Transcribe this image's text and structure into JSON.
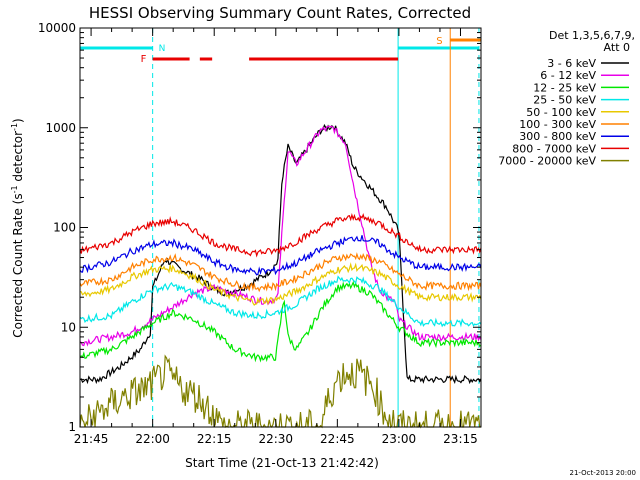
{
  "chart_data": {
    "type": "line",
    "title": "HESSI Observing Summary Count Rates, Corrected",
    "xlabel": "Start Time (21-Oct-13 21:42:42)",
    "ylabel": "Corrected Count Rate (s",
    "ylabel_sup": "-1",
    "ylabel_tail": " detector",
    "ylabel_tail_sup": "-1",
    "ylabel_close": ")",
    "yscale": "log",
    "ylim": [
      1,
      10000
    ],
    "xlim_minutes": [
      -2.7,
      95
    ],
    "xticks": [
      {
        "m": 0,
        "label": "21:45"
      },
      {
        "m": 15,
        "label": "22:00"
      },
      {
        "m": 30,
        "label": "22:15"
      },
      {
        "m": 45,
        "label": "22:30"
      },
      {
        "m": 60,
        "label": "22:45"
      },
      {
        "m": 75,
        "label": "23:00"
      },
      {
        "m": 90,
        "label": "23:15"
      }
    ],
    "yticks": [
      {
        "v": 1,
        "label": "1"
      },
      {
        "v": 10,
        "label": "10"
      },
      {
        "v": 100,
        "label": "100"
      },
      {
        "v": 1000,
        "label": "1000"
      },
      {
        "v": 10000,
        "label": "10000"
      }
    ],
    "legend_title_1": "Det 1,3,5,6,7,9,",
    "legend_title_2": "Att 0",
    "legend_position": "right",
    "series": [
      {
        "name": "3 - 6 keV",
        "color": "#000000",
        "x": [
          -2.7,
          2,
          7,
          12,
          14.5,
          15,
          18,
          22,
          27,
          30,
          33,
          38,
          43,
          45.5,
          46.5,
          48,
          50,
          53,
          56,
          59,
          62,
          64,
          67,
          70,
          72,
          75,
          77,
          80,
          85,
          90,
          95
        ],
        "values": [
          3,
          3,
          4,
          6,
          9,
          25,
          48,
          38,
          30,
          24,
          22,
          26,
          35,
          45,
          300,
          650,
          430,
          650,
          950,
          1050,
          700,
          400,
          280,
          200,
          160,
          90,
          3,
          3,
          3,
          3,
          3
        ]
      },
      {
        "name": "6 - 12 keV",
        "color": "#e800e8",
        "x": [
          -2.7,
          5,
          10,
          15,
          20,
          25,
          30,
          35,
          40,
          43,
          45.5,
          46.5,
          48,
          50,
          53,
          56,
          59,
          62,
          64,
          66,
          68,
          70,
          72,
          74,
          75,
          80,
          85,
          90,
          95
        ],
        "values": [
          7,
          8,
          9,
          12,
          16,
          22,
          25,
          22,
          19,
          18,
          20,
          90,
          600,
          430,
          650,
          950,
          1000,
          700,
          260,
          110,
          45,
          25,
          20,
          18,
          12,
          8,
          8,
          8,
          8
        ]
      },
      {
        "name": "12 - 25 keV",
        "color": "#00e800",
        "x": [
          -2.7,
          5,
          10,
          15,
          20,
          25,
          30,
          35,
          40,
          45,
          47,
          48,
          50,
          53,
          56,
          60,
          64,
          68,
          72,
          75,
          80,
          85,
          90,
          95
        ],
        "values": [
          5,
          6,
          8,
          11,
          14,
          12,
          9,
          6,
          5,
          5,
          20,
          8,
          6,
          9,
          15,
          25,
          26,
          22,
          14,
          10,
          7,
          7,
          7,
          7
        ]
      },
      {
        "name": "25 - 50 keV",
        "color": "#00e8e8",
        "x": [
          -2.7,
          5,
          10,
          15,
          20,
          25,
          30,
          35,
          40,
          45,
          50,
          55,
          60,
          65,
          70,
          75,
          80,
          85,
          90,
          95
        ],
        "values": [
          12,
          13,
          18,
          24,
          26,
          22,
          17,
          14,
          13,
          14,
          17,
          24,
          30,
          30,
          25,
          16,
          11,
          11,
          11,
          11
        ]
      },
      {
        "name": "50 - 100 keV",
        "color": "#e8c800",
        "x": [
          -2.7,
          5,
          10,
          15,
          20,
          25,
          30,
          35,
          40,
          45,
          50,
          55,
          60,
          65,
          70,
          75,
          80,
          85,
          90,
          95
        ],
        "values": [
          21,
          24,
          32,
          38,
          39,
          32,
          24,
          20,
          18,
          19,
          23,
          30,
          38,
          40,
          35,
          26,
          20,
          20,
          20,
          20
        ]
      },
      {
        "name": "100 - 300 keV",
        "color": "#ff8000",
        "x": [
          -2.7,
          5,
          10,
          15,
          20,
          25,
          30,
          35,
          40,
          45,
          50,
          55,
          60,
          65,
          70,
          75,
          80,
          85,
          90,
          95
        ],
        "values": [
          27,
          30,
          40,
          48,
          50,
          42,
          32,
          27,
          25,
          26,
          31,
          40,
          50,
          52,
          46,
          34,
          26,
          26,
          26,
          26
        ]
      },
      {
        "name": "300 - 800 keV",
        "color": "#0000e8",
        "x": [
          -2.7,
          5,
          10,
          15,
          20,
          25,
          30,
          35,
          40,
          45,
          50,
          55,
          60,
          65,
          70,
          75,
          80,
          85,
          90,
          95
        ],
        "values": [
          38,
          45,
          58,
          68,
          70,
          60,
          45,
          38,
          36,
          37,
          44,
          57,
          70,
          80,
          70,
          50,
          40,
          40,
          40,
          40
        ]
      },
      {
        "name": "800 - 7000 keV",
        "color": "#e80000",
        "x": [
          -2.7,
          5,
          10,
          15,
          20,
          25,
          30,
          35,
          40,
          45,
          50,
          55,
          60,
          65,
          70,
          75,
          80,
          85,
          90,
          95
        ],
        "values": [
          58,
          70,
          90,
          110,
          115,
          95,
          70,
          60,
          56,
          58,
          72,
          95,
          118,
          128,
          112,
          82,
          60,
          60,
          60,
          60
        ]
      },
      {
        "name": "7000 - 20000 keV",
        "color": "#808000",
        "x": [
          -2.7,
          3,
          8,
          14,
          18,
          22,
          26,
          29,
          32,
          45,
          56,
          58,
          60,
          62,
          65,
          69,
          71,
          75,
          80,
          85,
          90,
          95
        ],
        "values": [
          1,
          1.5,
          2,
          2.5,
          3.5,
          2.5,
          2,
          1.5,
          1,
          1,
          1,
          2,
          3,
          3.5,
          3.5,
          2.5,
          1.5,
          1,
          1,
          1,
          1,
          1
        ]
      }
    ],
    "annotations": {
      "n_label": "N",
      "f_label": "F",
      "s_label": "S",
      "night_intervals": [
        [
          -2.7,
          15
        ],
        [
          74.8,
          94.5
        ]
      ],
      "flag_intervals": [
        [
          15,
          24
        ],
        [
          26.5,
          29.5
        ],
        [
          38.5,
          74.8
        ]
      ],
      "saa_intervals": [
        [
          87.5,
          95
        ]
      ]
    }
  },
  "footer_date": "21-Oct-2013 20:00"
}
